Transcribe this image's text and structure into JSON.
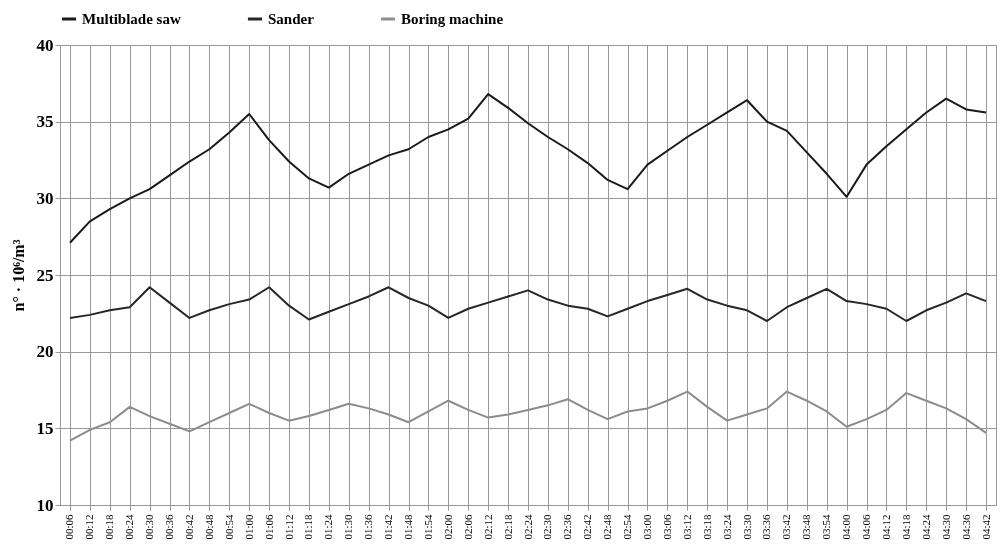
{
  "chart_data": {
    "type": "line",
    "ylabel": "n° · 10⁶/m³",
    "categories": [
      "00:06",
      "00:12",
      "00:18",
      "00:24",
      "00:30",
      "00:36",
      "00:42",
      "00:48",
      "00:54",
      "01:00",
      "01:06",
      "01:12",
      "01:18",
      "01:24",
      "01:30",
      "01:36",
      "01:42",
      "01:48",
      "01:54",
      "02:00",
      "02:06",
      "02:12",
      "02:18",
      "02:24",
      "02:30",
      "02:36",
      "02:42",
      "02:48",
      "02:54",
      "03:00",
      "03:06",
      "03:12",
      "03:18",
      "03:24",
      "03:30",
      "03:36",
      "03:42",
      "03:48",
      "03:54",
      "04:00",
      "04:06",
      "04:12",
      "04:18",
      "04:24",
      "04:30",
      "04:36",
      "04:42"
    ],
    "series": [
      {
        "name": "Multiblade saw",
        "color": "#1a1a1a",
        "values": [
          27.1,
          28.5,
          29.3,
          30.0,
          30.6,
          31.5,
          32.4,
          33.2,
          34.3,
          35.5,
          33.8,
          32.4,
          31.3,
          30.7,
          31.6,
          32.2,
          32.8,
          33.2,
          34.0,
          34.5,
          35.2,
          36.8,
          35.9,
          34.9,
          34.0,
          33.2,
          32.3,
          31.2,
          30.6,
          32.2,
          33.1,
          34.0,
          34.8,
          35.6,
          36.4,
          35.0,
          34.4,
          33.0,
          31.6,
          30.1,
          32.2,
          33.4,
          34.5,
          35.6,
          36.5,
          35.8,
          35.6
        ]
      },
      {
        "name": "Sander",
        "color": "#262626",
        "values": [
          22.2,
          22.4,
          22.7,
          22.9,
          24.2,
          23.2,
          22.2,
          22.7,
          23.1,
          23.4,
          24.2,
          23.0,
          22.1,
          22.6,
          23.1,
          23.6,
          24.2,
          23.5,
          23.0,
          22.2,
          22.8,
          23.2,
          23.6,
          24.0,
          23.4,
          23.0,
          22.8,
          22.3,
          22.8,
          23.3,
          23.7,
          24.1,
          23.4,
          23.0,
          22.7,
          22.0,
          22.9,
          23.5,
          24.1,
          23.3,
          23.1,
          22.8,
          22.0,
          22.7,
          23.2,
          23.8,
          23.3
        ]
      },
      {
        "name": "Boring machine",
        "color": "#8c8c8c",
        "values": [
          14.2,
          14.9,
          15.4,
          16.4,
          15.8,
          15.3,
          14.8,
          15.4,
          16.0,
          16.6,
          16.0,
          15.5,
          15.8,
          16.2,
          16.6,
          16.3,
          15.9,
          15.4,
          16.1,
          16.8,
          16.2,
          15.7,
          15.9,
          16.2,
          16.5,
          16.9,
          16.2,
          15.6,
          16.1,
          16.3,
          16.8,
          17.4,
          16.4,
          15.5,
          15.9,
          16.3,
          17.4,
          16.8,
          16.1,
          15.1,
          15.6,
          16.2,
          17.3,
          16.8,
          16.3,
          15.6,
          14.7
        ]
      }
    ],
    "ylim": [
      10,
      40
    ],
    "yticks": [
      10,
      15,
      20,
      25,
      30,
      35,
      40
    ],
    "grid": true,
    "legend": "top",
    "marker": "none",
    "line_style": "solid"
  }
}
